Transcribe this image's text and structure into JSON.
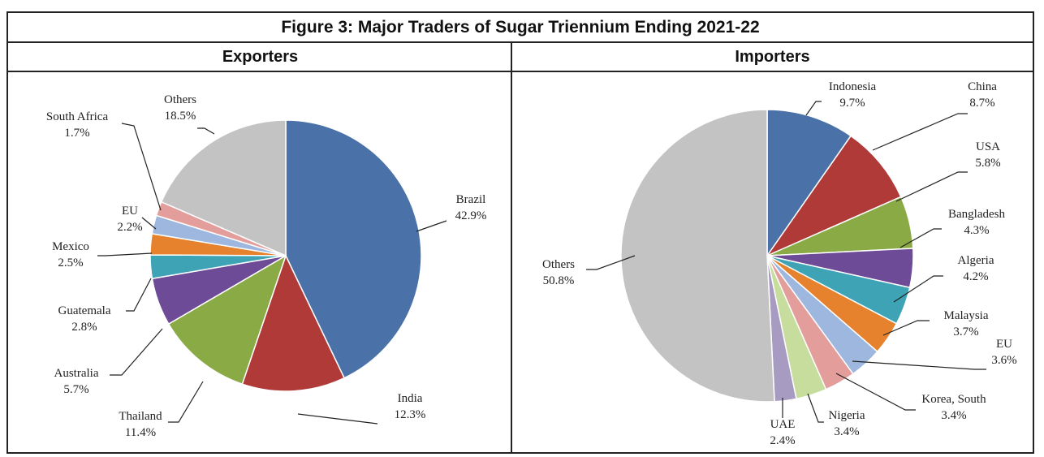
{
  "figure": {
    "title": "Figure 3: Major Traders of Sugar Triennium Ending 2021-22",
    "left_heading": "Exporters",
    "right_heading": "Importers"
  },
  "chart_data": [
    {
      "type": "pie",
      "title": "Exporters",
      "start": "12 o'clock, clockwise",
      "slices": [
        {
          "label": "Brazil",
          "value": 42.9,
          "display": "42.9%",
          "color": "#4A72A8"
        },
        {
          "label": "India",
          "value": 12.3,
          "display": "12.3%",
          "color": "#B03A38"
        },
        {
          "label": "Thailand",
          "value": 11.4,
          "display": "11.4%",
          "color": "#8AAA45"
        },
        {
          "label": "Australia",
          "value": 5.7,
          "display": "5.7%",
          "color": "#6E4B96"
        },
        {
          "label": "Guatemala",
          "value": 2.8,
          "display": "2.8%",
          "color": "#3FA3B6"
        },
        {
          "label": "Mexico",
          "value": 2.5,
          "display": "2.5%",
          "color": "#E6822E"
        },
        {
          "label": "EU",
          "value": 2.2,
          "display": "2.2%",
          "color": "#9DB7DF"
        },
        {
          "label": "South Africa",
          "value": 1.7,
          "display": "1.7%",
          "color": "#E39D9B"
        },
        {
          "label": "Others",
          "value": 18.5,
          "display": "18.5%",
          "color": "#C3C3C3"
        }
      ]
    },
    {
      "type": "pie",
      "title": "Importers",
      "start": "12 o'clock, clockwise",
      "slices": [
        {
          "label": "Indonesia",
          "value": 9.7,
          "display": "9.7%",
          "color": "#4A72A8"
        },
        {
          "label": "China",
          "value": 8.7,
          "display": "8.7%",
          "color": "#B03A38"
        },
        {
          "label": "USA",
          "value": 5.8,
          "display": "5.8%",
          "color": "#8AAA45"
        },
        {
          "label": "Bangladesh",
          "value": 4.3,
          "display": "4.3%",
          "color": "#6E4B96"
        },
        {
          "label": "Algeria",
          "value": 4.2,
          "display": "4.2%",
          "color": "#3FA3B6"
        },
        {
          "label": "Malaysia",
          "value": 3.7,
          "display": "3.7%",
          "color": "#E6822E"
        },
        {
          "label": "EU",
          "value": 3.6,
          "display": "3.6%",
          "color": "#9DB7DF"
        },
        {
          "label": "Korea, South",
          "value": 3.4,
          "display": "3.4%",
          "color": "#E39D9B"
        },
        {
          "label": "Nigeria",
          "value": 3.4,
          "display": "3.4%",
          "color": "#C6DD9D"
        },
        {
          "label": "UAE",
          "value": 2.4,
          "display": "2.4%",
          "color": "#A79BC2"
        },
        {
          "label": "Others",
          "value": 50.8,
          "display": "50.8%",
          "color": "#C3C3C3"
        }
      ]
    }
  ]
}
